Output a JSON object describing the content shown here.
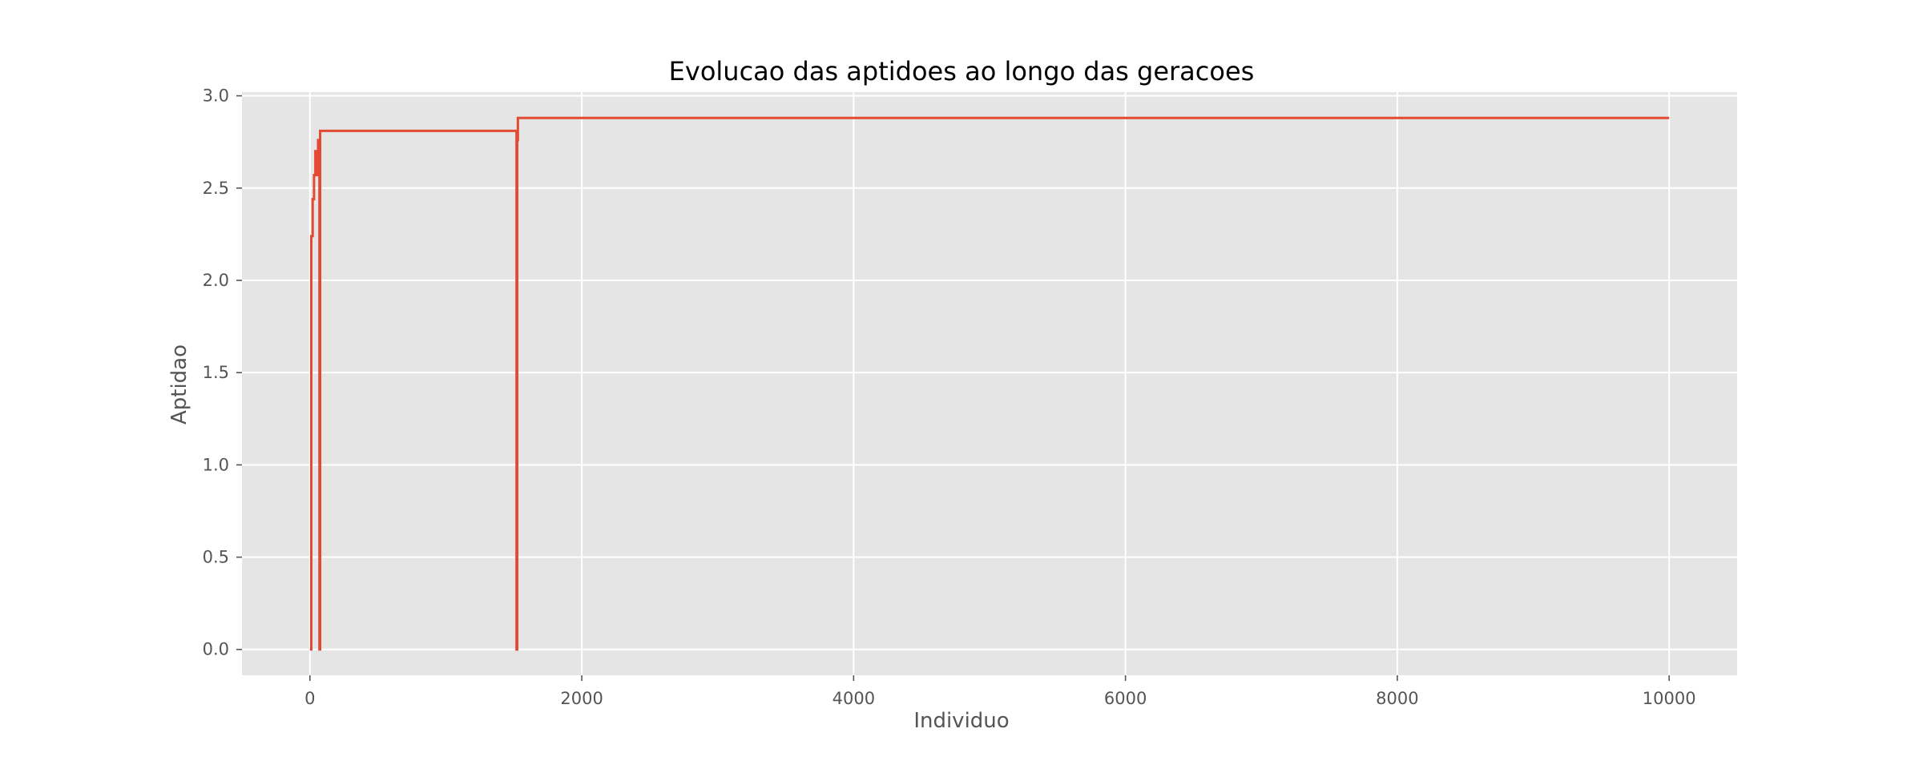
{
  "chart_data": {
    "type": "line",
    "title": "Evolucao das aptidoes ao longo das geracoes",
    "xlabel": "Individuo",
    "ylabel": "Aptidao",
    "xlim": [
      -500,
      10500
    ],
    "ylim": [
      -0.14,
      3.02
    ],
    "x_ticks": [
      0,
      2000,
      4000,
      6000,
      8000,
      10000
    ],
    "y_ticks": [
      0.0,
      0.5,
      1.0,
      1.5,
      2.0,
      2.5,
      3.0
    ],
    "x_tick_labels": [
      "0",
      "2000",
      "4000",
      "6000",
      "8000",
      "10000"
    ],
    "y_tick_labels": [
      "0.0",
      "0.5",
      "1.0",
      "1.5",
      "2.0",
      "2.5",
      "3.0"
    ],
    "grid": true,
    "style": "ggplot",
    "colors": {
      "line": "#E24A33",
      "plot_bg": "#E5E5E5",
      "grid": "#FFFFFF",
      "text": "#555555",
      "title": "#000000"
    },
    "series": [
      {
        "x": [
          0,
          10,
          10,
          20,
          20,
          30,
          30,
          40,
          40,
          50,
          50,
          60,
          60,
          70,
          70,
          75,
          75,
          80,
          80,
          1520,
          1520,
          1525,
          1525,
          1530,
          1530,
          10000
        ],
        "y": [
          0.0,
          0.0,
          2.24,
          2.24,
          2.44,
          2.44,
          2.57,
          2.57,
          2.7,
          2.7,
          2.57,
          2.57,
          2.76,
          2.76,
          0.0,
          0.0,
          2.81,
          2.81,
          2.81,
          2.81,
          0.0,
          0.0,
          2.76,
          2.76,
          2.88,
          2.88
        ]
      }
    ]
  }
}
